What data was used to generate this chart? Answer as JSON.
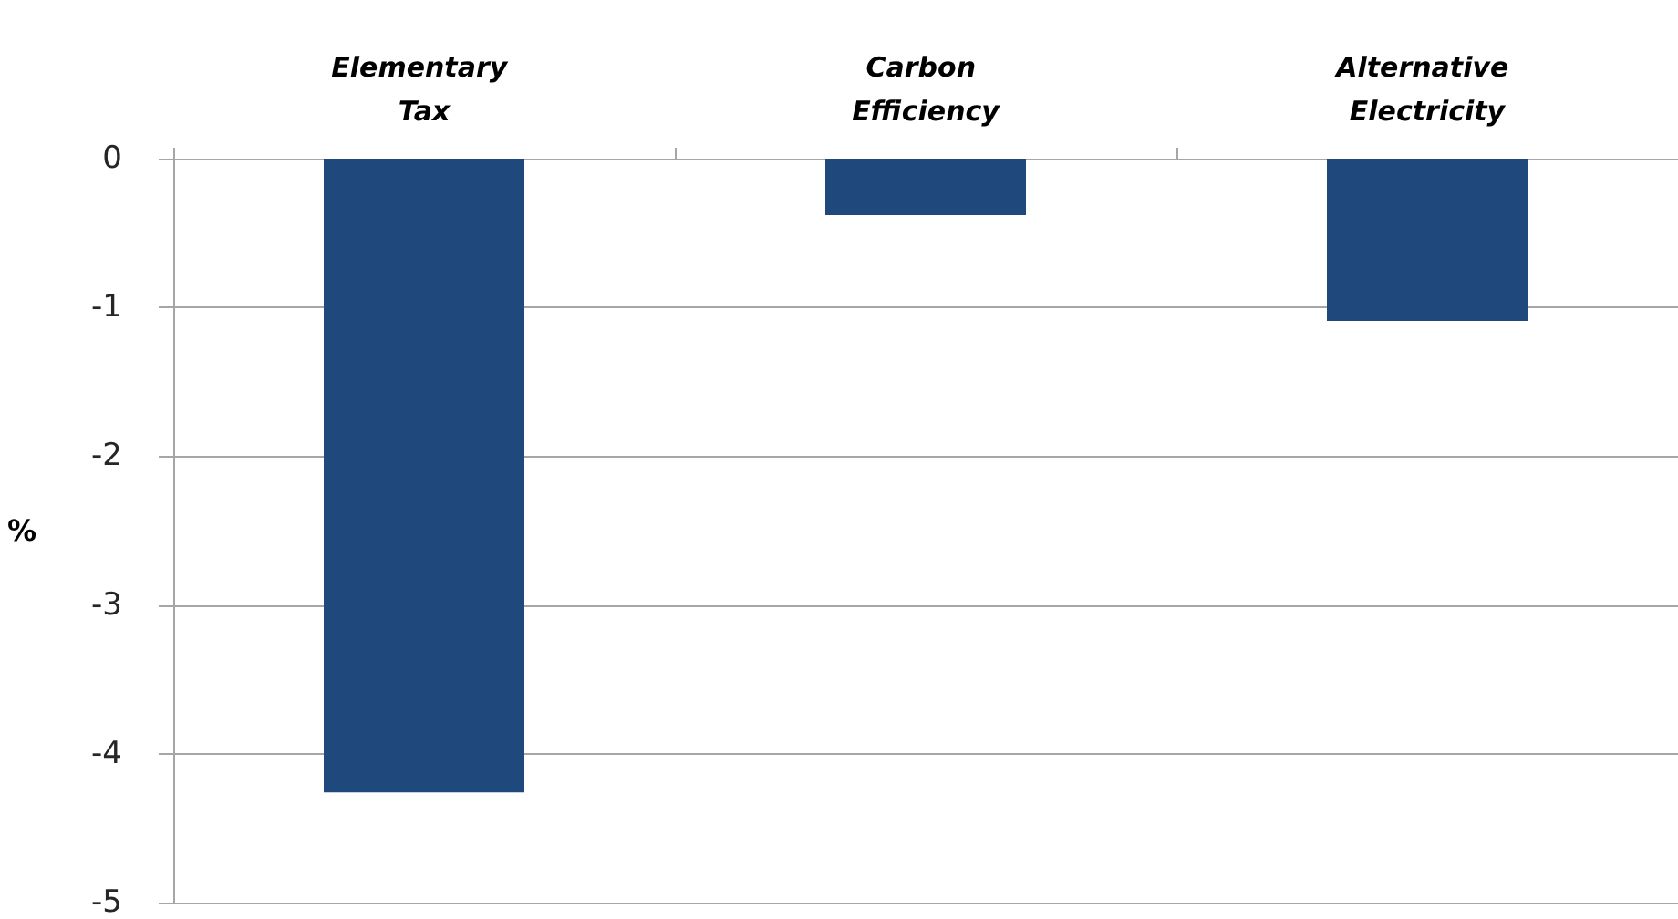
{
  "chart_data": {
    "type": "bar",
    "ylabel": "%",
    "categories": [
      "Elementary Tax",
      "Carbon Efficiency",
      "Alternative Electricity"
    ],
    "values": [
      -4.26,
      -0.38,
      -1.09
    ],
    "color": "#1f497d",
    "ylim": [
      -5,
      0
    ],
    "yticks": [
      -5,
      -4,
      -3,
      -2,
      -1,
      0
    ],
    "grid": "y"
  }
}
